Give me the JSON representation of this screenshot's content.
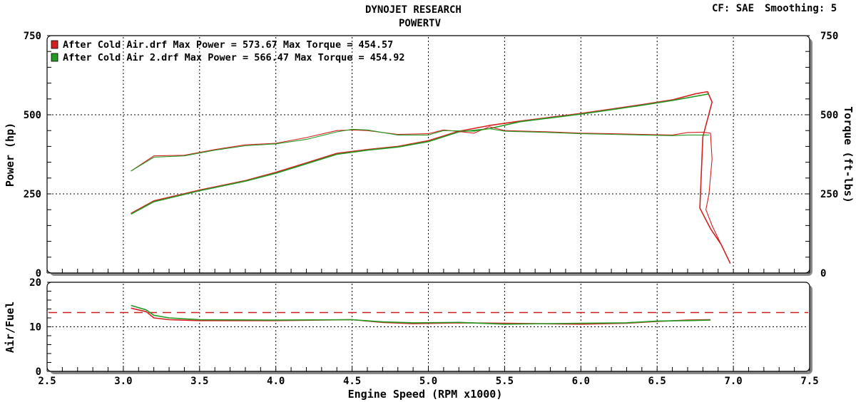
{
  "header": {
    "title": "DYNOJET RESEARCH",
    "subtitle": "POWERTV",
    "cf_label": "CF: SAE",
    "smoothing_label": "Smoothing: 5"
  },
  "chart_data": [
    {
      "type": "line",
      "title": "",
      "xlabel": "Engine Speed (RPM x1000)",
      "ylabel": "Power (hp)",
      "y2label": "Torque (ft-lbs)",
      "xlim": [
        2.5,
        7.5
      ],
      "ylim": [
        0,
        750
      ],
      "y2lim": [
        0,
        750
      ],
      "x_ticks": [
        "2.5",
        "3.0",
        "3.5",
        "4.0",
        "4.5",
        "5.0",
        "5.5",
        "6.0",
        "6.5",
        "7.0",
        "7.5"
      ],
      "y_ticks": [
        "0",
        "250",
        "500",
        "750"
      ],
      "y2_ticks": [
        "0",
        "250",
        "500",
        "750"
      ],
      "grid": true,
      "legend_position": "top-left",
      "legend": [
        {
          "text": "After Cold Air.drf Max Power = 573.67     Max Torque = 454.57",
          "color": "#d42020"
        },
        {
          "text": "After Cold Air 2.drf Max Power = 566.47     Max Torque = 454.92",
          "color": "#239b23"
        }
      ],
      "series": [
        {
          "name": "After Cold Air.drf",
          "quantity": "power",
          "color": "#d42020",
          "x": [
            3.05,
            3.2,
            3.5,
            3.8,
            4.0,
            4.2,
            4.4,
            4.6,
            4.8,
            5.0,
            5.2,
            5.4,
            5.6,
            5.8,
            6.0,
            6.2,
            6.4,
            6.6,
            6.75,
            6.83,
            6.86,
            6.8,
            6.78,
            6.85,
            6.92,
            6.98
          ],
          "y": [
            188,
            228,
            262,
            292,
            318,
            348,
            378,
            390,
            400,
            418,
            448,
            466,
            480,
            492,
            504,
            518,
            532,
            547,
            566,
            573,
            540,
            430,
            205,
            140,
            90,
            30
          ]
        },
        {
          "name": "After Cold Air 2.drf",
          "quantity": "power",
          "color": "#239b23",
          "x": [
            3.05,
            3.2,
            3.5,
            3.8,
            4.0,
            4.2,
            4.4,
            4.6,
            4.8,
            5.0,
            5.2,
            5.4,
            5.6,
            5.8,
            6.0,
            6.2,
            6.4,
            6.6,
            6.75,
            6.84
          ],
          "y": [
            186,
            225,
            260,
            290,
            315,
            345,
            375,
            388,
            398,
            415,
            446,
            456,
            478,
            490,
            502,
            516,
            530,
            545,
            558,
            566
          ]
        },
        {
          "name": "After Cold Air.drf",
          "quantity": "torque",
          "color": "#d42020",
          "x": [
            3.05,
            3.2,
            3.4,
            3.6,
            3.8,
            4.0,
            4.2,
            4.4,
            4.5,
            4.6,
            4.8,
            5.0,
            5.1,
            5.3,
            5.4,
            5.5,
            5.8,
            6.0,
            6.2,
            6.4,
            6.6,
            6.7,
            6.8,
            6.85,
            6.86,
            6.84,
            6.82,
            6.86,
            6.92,
            6.98
          ],
          "y": [
            322,
            370,
            372,
            390,
            405,
            410,
            428,
            450,
            452,
            450,
            438,
            440,
            452,
            442,
            462,
            450,
            446,
            442,
            440,
            438,
            436,
            444,
            445,
            442,
            360,
            250,
            200,
            150,
            90,
            30
          ]
        },
        {
          "name": "After Cold Air 2.drf",
          "quantity": "torque",
          "color": "#239b23",
          "x": [
            3.05,
            3.2,
            3.4,
            3.6,
            3.8,
            4.0,
            4.2,
            4.4,
            4.5,
            4.6,
            4.8,
            5.0,
            5.1,
            5.3,
            5.4,
            5.5,
            5.8,
            6.0,
            6.2,
            6.4,
            6.6,
            6.7,
            6.84
          ],
          "y": [
            322,
            366,
            370,
            388,
            402,
            408,
            422,
            446,
            454,
            452,
            436,
            436,
            450,
            448,
            456,
            448,
            444,
            440,
            438,
            436,
            434,
            436,
            436
          ]
        }
      ]
    },
    {
      "type": "line",
      "title": "",
      "xlabel": "Engine Speed (RPM x1000)",
      "ylabel": "Air/Fuel",
      "xlim": [
        2.5,
        7.5
      ],
      "ylim": [
        0,
        20
      ],
      "y_ticks": [
        "0",
        "10",
        "20"
      ],
      "grid": true,
      "reference_line": {
        "y": 13.2,
        "color": "#c8201a",
        "style": "dashed"
      },
      "series": [
        {
          "name": "After Cold Air.drf",
          "color": "#d42020",
          "x": [
            3.05,
            3.15,
            3.2,
            3.3,
            3.5,
            4.0,
            4.5,
            4.7,
            4.9,
            5.2,
            5.5,
            6.0,
            6.3,
            6.5,
            6.7,
            6.85
          ],
          "y": [
            14.2,
            13.4,
            12.0,
            11.6,
            11.4,
            11.4,
            11.6,
            11.0,
            10.7,
            10.9,
            10.8,
            10.6,
            10.8,
            11.2,
            11.5,
            11.6
          ]
        },
        {
          "name": "After Cold Air 2.drf",
          "color": "#239b23",
          "x": [
            3.05,
            3.15,
            3.2,
            3.3,
            3.5,
            4.0,
            4.5,
            4.7,
            4.9,
            5.2,
            5.5,
            6.0,
            6.3,
            6.5,
            6.7,
            6.85
          ],
          "y": [
            14.8,
            13.8,
            12.6,
            12.0,
            11.6,
            11.5,
            11.6,
            11.1,
            10.9,
            11.0,
            10.6,
            10.8,
            10.9,
            11.3,
            11.4,
            11.5
          ]
        }
      ]
    }
  ]
}
